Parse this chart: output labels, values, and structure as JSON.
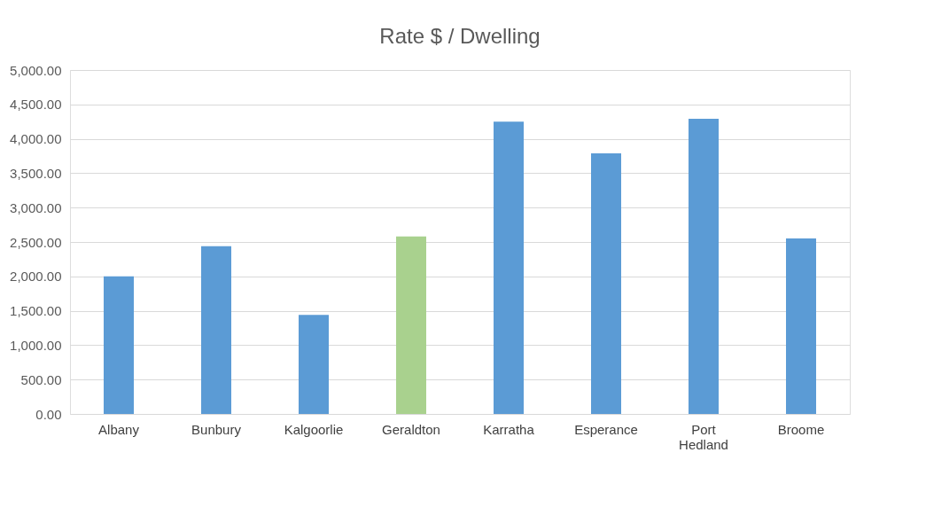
{
  "chart_data": {
    "type": "bar",
    "title": "Rate $ / Dwelling",
    "categories": [
      "Albany",
      "Bunbury",
      "Kalgoorlie",
      "Geraldton",
      "Karratha",
      "Esperance",
      "Port Hedland",
      "Broome"
    ],
    "values": [
      2000,
      2440,
      1440,
      2580,
      4250,
      3790,
      4290,
      2550
    ],
    "colors": [
      "#5b9bd5",
      "#5b9bd5",
      "#5b9bd5",
      "#a9d18e",
      "#5b9bd5",
      "#5b9bd5",
      "#5b9bd5",
      "#5b9bd5"
    ],
    "ylim": [
      0,
      5000
    ],
    "yticks": [
      {
        "value": 0,
        "label": "0.00"
      },
      {
        "value": 500,
        "label": "500.00"
      },
      {
        "value": 1000,
        "label": "1,000.00"
      },
      {
        "value": 1500,
        "label": "1,500.00"
      },
      {
        "value": 2000,
        "label": "2,000.00"
      },
      {
        "value": 2500,
        "label": "2,500.00"
      },
      {
        "value": 3000,
        "label": "3,000.00"
      },
      {
        "value": 3500,
        "label": "3,500.00"
      },
      {
        "value": 4000,
        "label": "4,000.00"
      },
      {
        "value": 4500,
        "label": "4,500.00"
      },
      {
        "value": 5000,
        "label": "5,000.00"
      }
    ],
    "grid": "y"
  }
}
